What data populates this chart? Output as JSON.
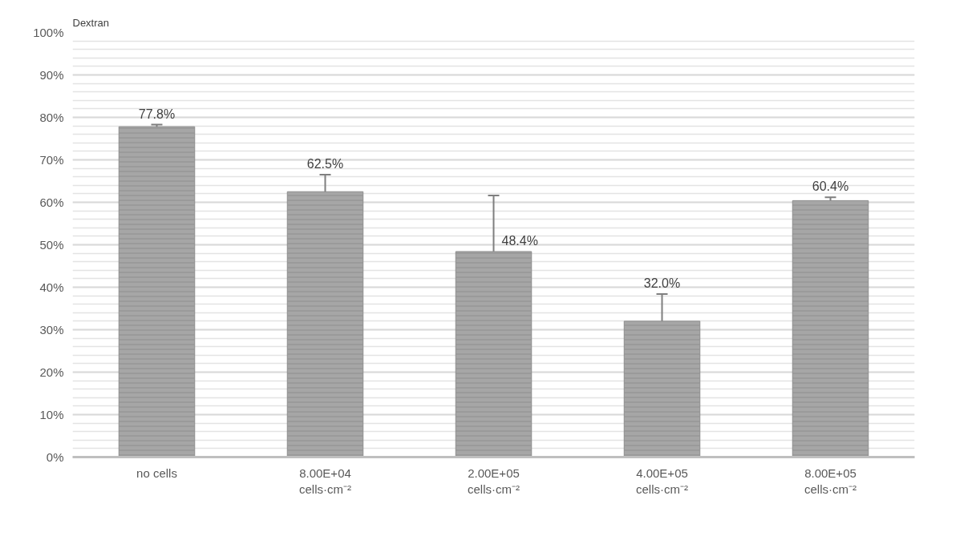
{
  "chart_data": {
    "type": "bar",
    "title": "Dextran",
    "categories": [
      "no cells",
      "8.00E+04\ncells·cm⁻²",
      "2.00E+05\ncells·cm⁻²",
      "4.00E+05\ncells·cm⁻²",
      "8.00E+05\ncells·cm⁻²"
    ],
    "values": [
      77.8,
      62.5,
      48.4,
      32.0,
      60.4
    ],
    "errors": [
      0.5,
      4,
      13.2,
      6.4,
      0.8
    ],
    "value_labels": [
      "77.8%",
      "62.5%",
      "48.4%",
      "32.0%",
      "60.4%"
    ],
    "color": "#a6a6a6",
    "ylim": [
      0,
      100
    ],
    "yticks": [
      {
        "value": 0,
        "label": "0%"
      },
      {
        "value": 10,
        "label": "10%"
      },
      {
        "value": 20,
        "label": "20%"
      },
      {
        "value": 30,
        "label": "30%"
      },
      {
        "value": 40,
        "label": "40%"
      },
      {
        "value": 50,
        "label": "50%"
      },
      {
        "value": 60,
        "label": "60%"
      },
      {
        "value": 70,
        "label": "70%"
      },
      {
        "value": 80,
        "label": "80%"
      },
      {
        "value": 90,
        "label": "90%"
      },
      {
        "value": 100,
        "label": "100%"
      }
    ],
    "grid": "y"
  }
}
